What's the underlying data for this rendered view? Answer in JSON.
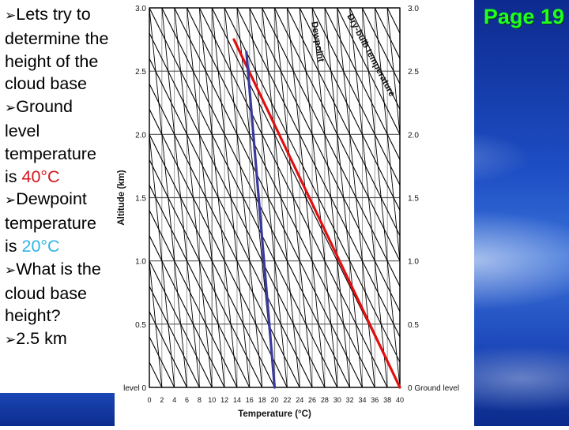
{
  "slide": {
    "page_label": "Page 19",
    "bullets": [
      {
        "text": "Lets try to determine the height of the cloud base"
      },
      {
        "text_before": "Ground level temperature is ",
        "value": "40°C",
        "value_color": "#d6151b"
      },
      {
        "text_before": "Dewpoint temperature is ",
        "value": "20°C",
        "value_color": "#2fb3e8"
      },
      {
        "text": "What is the cloud base height?"
      },
      {
        "text": "2.5 km"
      }
    ]
  },
  "chart_data": {
    "type": "line",
    "xlabel": "Temperature (°C)",
    "ylabel": "Altitude (km)",
    "xlim": [
      0,
      40
    ],
    "ylim": [
      0,
      3
    ],
    "x_ticks": [
      "0",
      "2",
      "4",
      "6",
      "8",
      "10",
      "12",
      "14",
      "16",
      "18",
      "20",
      "22",
      "24",
      "26",
      "28",
      "30",
      "32",
      "34",
      "36",
      "38",
      "40"
    ],
    "y_ticks_left": [
      "level 0",
      "0.5",
      "1.0",
      "1.5",
      "2.0",
      "2.5",
      "3.0"
    ],
    "y_ticks_right": [
      "0 Ground level",
      "0.5",
      "1.0",
      "1.5",
      "2.0",
      "2.5",
      "3.0"
    ],
    "annotations": [
      "Dewpoint",
      "Dry-bulb temperature"
    ],
    "series": [
      {
        "color": "#e01010",
        "points": [
          [
            40,
            0
          ],
          [
            13.5,
            2.75
          ]
        ]
      },
      {
        "color": "#3a3a9e",
        "points": [
          [
            20,
            0
          ],
          [
            15.5,
            2.65
          ]
        ]
      }
    ],
    "dry_bulb_lapse_c_per_km": 10,
    "dewpoint_lapse_c_per_km": 2,
    "grid": true
  }
}
